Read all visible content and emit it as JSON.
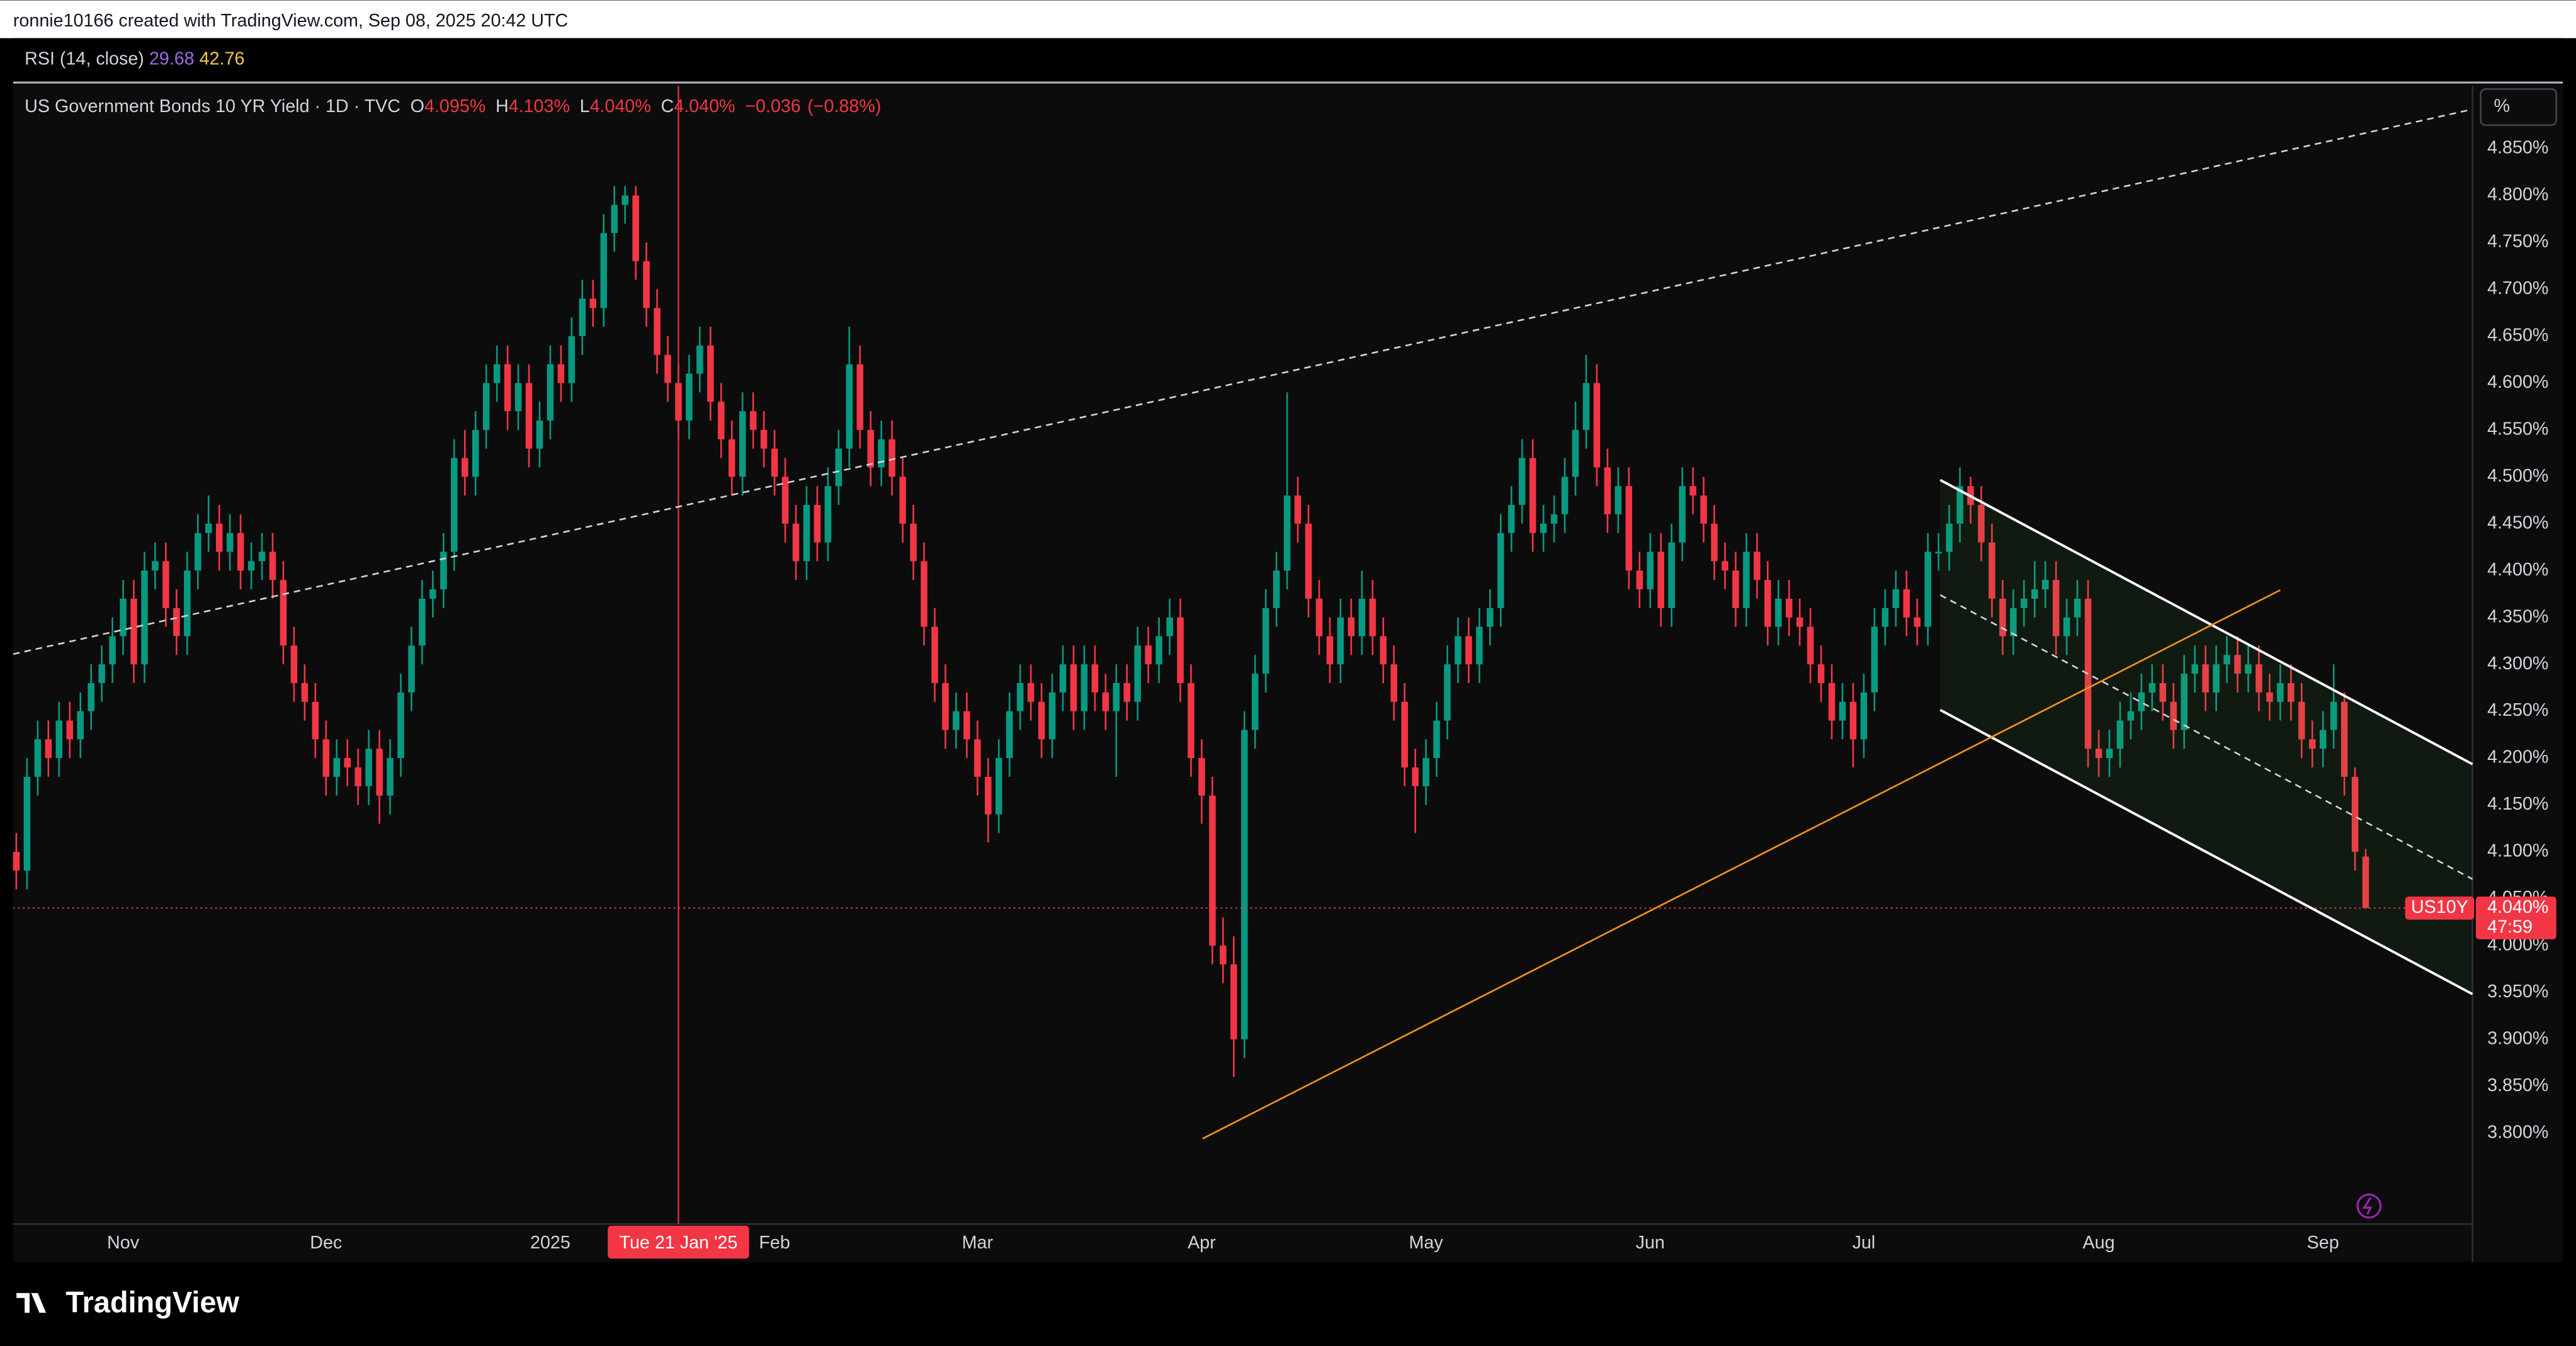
{
  "header": {
    "credit": "ronnie10166 created with TradingView.com, Sep 08, 2025 20:42 UTC"
  },
  "rsi": {
    "label": "RSI (14, close)",
    "values": [
      29.68,
      42.76
    ]
  },
  "footer": {
    "logo": "TradingView"
  },
  "chart_data": {
    "type": "candlestick",
    "title": "US Government Bonds 10 YR Yield · 1D · TVC",
    "ohlc": [
      {
        "key": "O",
        "value": 4.095,
        "label": "4.095%"
      },
      {
        "key": "H",
        "value": 4.103,
        "label": "4.103%"
      },
      {
        "key": "L",
        "value": 4.04,
        "label": "4.040%"
      },
      {
        "key": "C",
        "value": 4.04,
        "label": "4.040%"
      }
    ],
    "change": [
      {
        "value": -0.036,
        "label": "−0.036"
      },
      {
        "value": -0.88,
        "label": "(−0.88%)"
      }
    ],
    "unit": "%",
    "up_color": "#089981",
    "down_color": "#f23645",
    "grid": false,
    "xlim": [
      -0.3,
      230
    ],
    "ylim": [
      3.703,
      4.917
    ],
    "xticks": [
      {
        "value": 10,
        "label": "Nov"
      },
      {
        "value": 29,
        "label": "Dec"
      },
      {
        "value": 50,
        "label": "2025"
      },
      {
        "value": 71,
        "label": "Feb"
      },
      {
        "value": 90,
        "label": "Mar"
      },
      {
        "value": 111,
        "label": "Apr"
      },
      {
        "value": 132,
        "label": "May"
      },
      {
        "value": 153,
        "label": "Jun"
      },
      {
        "value": 173,
        "label": "Jul"
      },
      {
        "value": 195,
        "label": "Aug"
      },
      {
        "value": 216,
        "label": "Sep"
      }
    ],
    "yticks": [
      {
        "value": 3.8,
        "label": "3.800%"
      },
      {
        "value": 3.85,
        "label": "3.850%"
      },
      {
        "value": 3.9,
        "label": "3.900%"
      },
      {
        "value": 3.95,
        "label": "3.950%"
      },
      {
        "value": 4.0,
        "label": "4.000%"
      },
      {
        "value": 4.05,
        "label": "4.050%"
      },
      {
        "value": 4.1,
        "label": "4.100%"
      },
      {
        "value": 4.15,
        "label": "4.150%"
      },
      {
        "value": 4.2,
        "label": "4.200%"
      },
      {
        "value": 4.25,
        "label": "4.250%"
      },
      {
        "value": 4.3,
        "label": "4.300%"
      },
      {
        "value": 4.35,
        "label": "4.350%"
      },
      {
        "value": 4.4,
        "label": "4.400%"
      },
      {
        "value": 4.45,
        "label": "4.450%"
      },
      {
        "value": 4.5,
        "label": "4.500%"
      },
      {
        "value": 4.55,
        "label": "4.550%"
      },
      {
        "value": 4.6,
        "label": "4.600%"
      },
      {
        "value": 4.65,
        "label": "4.650%"
      },
      {
        "value": 4.7,
        "label": "4.700%"
      },
      {
        "value": 4.75,
        "label": "4.750%"
      },
      {
        "value": 4.8,
        "label": "4.800%"
      },
      {
        "value": 4.85,
        "label": "4.850%"
      }
    ],
    "crosshair": {
      "x": 62,
      "label": "Tue 21 Jan '25"
    },
    "last": {
      "value": 4.04,
      "label": "4.040%",
      "countdown": "47:59",
      "symbol": "US10Y"
    },
    "candles": [
      [
        4.1,
        4.12,
        4.06,
        4.08
      ],
      [
        4.08,
        4.2,
        4.06,
        4.18
      ],
      [
        4.18,
        4.24,
        4.16,
        4.22
      ],
      [
        4.22,
        4.24,
        4.18,
        4.2
      ],
      [
        4.2,
        4.26,
        4.18,
        4.24
      ],
      [
        4.24,
        4.26,
        4.2,
        4.22
      ],
      [
        4.22,
        4.27,
        4.2,
        4.25
      ],
      [
        4.25,
        4.3,
        4.23,
        4.28
      ],
      [
        4.28,
        4.32,
        4.26,
        4.3
      ],
      [
        4.3,
        4.35,
        4.28,
        4.33
      ],
      [
        4.33,
        4.39,
        4.31,
        4.37
      ],
      [
        4.37,
        4.39,
        4.28,
        4.3
      ],
      [
        4.3,
        4.42,
        4.28,
        4.4
      ],
      [
        4.4,
        4.43,
        4.38,
        4.41
      ],
      [
        4.41,
        4.43,
        4.34,
        4.36
      ],
      [
        4.36,
        4.38,
        4.31,
        4.33
      ],
      [
        4.33,
        4.42,
        4.31,
        4.4
      ],
      [
        4.4,
        4.46,
        4.38,
        4.44
      ],
      [
        4.44,
        4.48,
        4.42,
        4.45
      ],
      [
        4.45,
        4.47,
        4.4,
        4.42
      ],
      [
        4.42,
        4.46,
        4.4,
        4.44
      ],
      [
        4.44,
        4.46,
        4.38,
        4.4
      ],
      [
        4.4,
        4.43,
        4.38,
        4.41
      ],
      [
        4.41,
        4.44,
        4.39,
        4.42
      ],
      [
        4.42,
        4.44,
        4.37,
        4.39
      ],
      [
        4.39,
        4.41,
        4.3,
        4.32
      ],
      [
        4.32,
        4.34,
        4.26,
        4.28
      ],
      [
        4.28,
        4.3,
        4.24,
        4.26
      ],
      [
        4.26,
        4.28,
        4.2,
        4.22
      ],
      [
        4.22,
        4.24,
        4.16,
        4.18
      ],
      [
        4.18,
        4.22,
        4.16,
        4.2
      ],
      [
        4.2,
        4.22,
        4.17,
        4.19
      ],
      [
        4.19,
        4.21,
        4.15,
        4.17
      ],
      [
        4.17,
        4.23,
        4.15,
        4.21
      ],
      [
        4.21,
        4.23,
        4.13,
        4.16
      ],
      [
        4.16,
        4.22,
        4.14,
        4.2
      ],
      [
        4.2,
        4.29,
        4.18,
        4.27
      ],
      [
        4.27,
        4.34,
        4.25,
        4.32
      ],
      [
        4.32,
        4.39,
        4.3,
        4.37
      ],
      [
        4.37,
        4.4,
        4.35,
        4.38
      ],
      [
        4.38,
        4.44,
        4.36,
        4.42
      ],
      [
        4.42,
        4.54,
        4.4,
        4.52
      ],
      [
        4.52,
        4.55,
        4.48,
        4.5
      ],
      [
        4.5,
        4.57,
        4.48,
        4.55
      ],
      [
        4.55,
        4.62,
        4.53,
        4.6
      ],
      [
        4.6,
        4.64,
        4.58,
        4.62
      ],
      [
        4.62,
        4.64,
        4.55,
        4.57
      ],
      [
        4.57,
        4.62,
        4.55,
        4.6
      ],
      [
        4.6,
        4.62,
        4.51,
        4.53
      ],
      [
        4.53,
        4.58,
        4.51,
        4.56
      ],
      [
        4.56,
        4.64,
        4.54,
        4.62
      ],
      [
        4.62,
        4.64,
        4.58,
        4.6
      ],
      [
        4.6,
        4.67,
        4.58,
        4.65
      ],
      [
        4.65,
        4.71,
        4.63,
        4.69
      ],
      [
        4.69,
        4.71,
        4.66,
        4.68
      ],
      [
        4.68,
        4.78,
        4.66,
        4.76
      ],
      [
        4.76,
        4.81,
        4.74,
        4.79
      ],
      [
        4.79,
        4.81,
        4.77,
        4.8
      ],
      [
        4.8,
        4.81,
        4.71,
        4.73
      ],
      [
        4.73,
        4.75,
        4.66,
        4.68
      ],
      [
        4.68,
        4.7,
        4.61,
        4.63
      ],
      [
        4.63,
        4.65,
        4.58,
        4.6
      ],
      [
        4.6,
        4.62,
        4.54,
        4.56
      ],
      [
        4.56,
        4.63,
        4.54,
        4.61
      ],
      [
        4.61,
        4.66,
        4.59,
        4.64
      ],
      [
        4.64,
        4.66,
        4.56,
        4.58
      ],
      [
        4.58,
        4.6,
        4.52,
        4.54
      ],
      [
        4.54,
        4.56,
        4.48,
        4.5
      ],
      [
        4.5,
        4.59,
        4.48,
        4.57
      ],
      [
        4.57,
        4.59,
        4.53,
        4.55
      ],
      [
        4.55,
        4.57,
        4.51,
        4.53
      ],
      [
        4.53,
        4.55,
        4.48,
        4.5
      ],
      [
        4.5,
        4.52,
        4.43,
        4.45
      ],
      [
        4.45,
        4.47,
        4.39,
        4.41
      ],
      [
        4.41,
        4.49,
        4.39,
        4.47
      ],
      [
        4.47,
        4.49,
        4.41,
        4.43
      ],
      [
        4.43,
        4.51,
        4.41,
        4.49
      ],
      [
        4.49,
        4.55,
        4.47,
        4.53
      ],
      [
        4.53,
        4.66,
        4.51,
        4.62
      ],
      [
        4.62,
        4.64,
        4.53,
        4.55
      ],
      [
        4.55,
        4.57,
        4.49,
        4.51
      ],
      [
        4.51,
        4.56,
        4.49,
        4.54
      ],
      [
        4.54,
        4.56,
        4.48,
        4.5
      ],
      [
        4.5,
        4.52,
        4.43,
        4.45
      ],
      [
        4.45,
        4.47,
        4.39,
        4.41
      ],
      [
        4.41,
        4.43,
        4.32,
        4.34
      ],
      [
        4.34,
        4.36,
        4.26,
        4.28
      ],
      [
        4.28,
        4.3,
        4.21,
        4.23
      ],
      [
        4.23,
        4.27,
        4.21,
        4.25
      ],
      [
        4.25,
        4.27,
        4.2,
        4.22
      ],
      [
        4.22,
        4.24,
        4.16,
        4.18
      ],
      [
        4.18,
        4.2,
        4.11,
        4.14
      ],
      [
        4.14,
        4.22,
        4.12,
        4.2
      ],
      [
        4.2,
        4.27,
        4.18,
        4.25
      ],
      [
        4.25,
        4.3,
        4.23,
        4.28
      ],
      [
        4.28,
        4.3,
        4.24,
        4.26
      ],
      [
        4.26,
        4.28,
        4.2,
        4.22
      ],
      [
        4.22,
        4.29,
        4.2,
        4.27
      ],
      [
        4.27,
        4.32,
        4.25,
        4.3
      ],
      [
        4.3,
        4.32,
        4.23,
        4.25
      ],
      [
        4.25,
        4.32,
        4.23,
        4.3
      ],
      [
        4.3,
        4.32,
        4.25,
        4.27
      ],
      [
        4.27,
        4.29,
        4.23,
        4.25
      ],
      [
        4.25,
        4.3,
        4.18,
        4.28
      ],
      [
        4.28,
        4.3,
        4.24,
        4.26
      ],
      [
        4.26,
        4.34,
        4.24,
        4.32
      ],
      [
        4.32,
        4.34,
        4.28,
        4.3
      ],
      [
        4.3,
        4.35,
        4.28,
        4.33
      ],
      [
        4.33,
        4.37,
        4.31,
        4.35
      ],
      [
        4.35,
        4.37,
        4.26,
        4.28
      ],
      [
        4.28,
        4.3,
        4.18,
        4.2
      ],
      [
        4.2,
        4.22,
        4.13,
        4.16
      ],
      [
        4.16,
        4.18,
        3.98,
        4.0
      ],
      [
        4.0,
        4.03,
        3.96,
        3.98
      ],
      [
        3.98,
        4.01,
        3.86,
        3.9
      ],
      [
        3.9,
        4.25,
        3.88,
        4.23
      ],
      [
        4.23,
        4.31,
        4.21,
        4.29
      ],
      [
        4.29,
        4.38,
        4.27,
        4.36
      ],
      [
        4.36,
        4.42,
        4.34,
        4.4
      ],
      [
        4.4,
        4.59,
        4.38,
        4.48
      ],
      [
        4.48,
        4.5,
        4.43,
        4.45
      ],
      [
        4.45,
        4.47,
        4.35,
        4.37
      ],
      [
        4.37,
        4.39,
        4.31,
        4.33
      ],
      [
        4.33,
        4.35,
        4.28,
        4.3
      ],
      [
        4.3,
        4.37,
        4.28,
        4.35
      ],
      [
        4.35,
        4.37,
        4.31,
        4.33
      ],
      [
        4.33,
        4.4,
        4.31,
        4.37
      ],
      [
        4.37,
        4.39,
        4.31,
        4.33
      ],
      [
        4.33,
        4.35,
        4.28,
        4.3
      ],
      [
        4.3,
        4.32,
        4.24,
        4.26
      ],
      [
        4.26,
        4.28,
        4.17,
        4.19
      ],
      [
        4.19,
        4.21,
        4.12,
        4.17
      ],
      [
        4.17,
        4.22,
        4.15,
        4.2
      ],
      [
        4.2,
        4.26,
        4.18,
        4.24
      ],
      [
        4.24,
        4.32,
        4.22,
        4.3
      ],
      [
        4.3,
        4.35,
        4.28,
        4.33
      ],
      [
        4.33,
        4.35,
        4.28,
        4.3
      ],
      [
        4.3,
        4.36,
        4.28,
        4.34
      ],
      [
        4.34,
        4.38,
        4.32,
        4.36
      ],
      [
        4.36,
        4.46,
        4.34,
        4.44
      ],
      [
        4.44,
        4.49,
        4.42,
        4.47
      ],
      [
        4.47,
        4.54,
        4.45,
        4.52
      ],
      [
        4.52,
        4.54,
        4.42,
        4.44
      ],
      [
        4.44,
        4.47,
        4.42,
        4.45
      ],
      [
        4.45,
        4.48,
        4.43,
        4.46
      ],
      [
        4.46,
        4.52,
        4.44,
        4.5
      ],
      [
        4.5,
        4.58,
        4.48,
        4.55
      ],
      [
        4.55,
        4.63,
        4.53,
        4.6
      ],
      [
        4.6,
        4.62,
        4.49,
        4.51
      ],
      [
        4.51,
        4.53,
        4.44,
        4.46
      ],
      [
        4.46,
        4.51,
        4.44,
        4.49
      ],
      [
        4.49,
        4.51,
        4.38,
        4.4
      ],
      [
        4.4,
        4.42,
        4.36,
        4.38
      ],
      [
        4.38,
        4.44,
        4.36,
        4.42
      ],
      [
        4.42,
        4.44,
        4.34,
        4.36
      ],
      [
        4.36,
        4.45,
        4.34,
        4.43
      ],
      [
        4.43,
        4.51,
        4.41,
        4.49
      ],
      [
        4.49,
        4.51,
        4.46,
        4.48
      ],
      [
        4.48,
        4.5,
        4.43,
        4.45
      ],
      [
        4.45,
        4.47,
        4.39,
        4.41
      ],
      [
        4.41,
        4.43,
        4.38,
        4.4
      ],
      [
        4.4,
        4.42,
        4.34,
        4.36
      ],
      [
        4.36,
        4.44,
        4.34,
        4.42
      ],
      [
        4.42,
        4.44,
        4.37,
        4.39
      ],
      [
        4.39,
        4.41,
        4.32,
        4.34
      ],
      [
        4.34,
        4.39,
        4.32,
        4.37
      ],
      [
        4.37,
        4.39,
        4.33,
        4.35
      ],
      [
        4.35,
        4.37,
        4.32,
        4.34
      ],
      [
        4.34,
        4.36,
        4.28,
        4.3
      ],
      [
        4.3,
        4.32,
        4.26,
        4.28
      ],
      [
        4.28,
        4.3,
        4.22,
        4.24
      ],
      [
        4.24,
        4.28,
        4.22,
        4.26
      ],
      [
        4.26,
        4.28,
        4.19,
        4.22
      ],
      [
        4.22,
        4.29,
        4.2,
        4.27
      ],
      [
        4.27,
        4.36,
        4.25,
        4.34
      ],
      [
        4.34,
        4.38,
        4.32,
        4.36
      ],
      [
        4.36,
        4.4,
        4.34,
        4.38
      ],
      [
        4.38,
        4.4,
        4.33,
        4.35
      ],
      [
        4.35,
        4.37,
        4.32,
        4.34
      ],
      [
        4.34,
        4.44,
        4.32,
        4.42
      ],
      [
        4.42,
        4.44,
        4.4,
        4.42
      ],
      [
        4.42,
        4.47,
        4.4,
        4.45
      ],
      [
        4.45,
        4.51,
        4.43,
        4.49
      ],
      [
        4.49,
        4.5,
        4.45,
        4.47
      ],
      [
        4.47,
        4.49,
        4.41,
        4.43
      ],
      [
        4.43,
        4.45,
        4.35,
        4.37
      ],
      [
        4.37,
        4.39,
        4.31,
        4.33
      ],
      [
        4.33,
        4.38,
        4.31,
        4.36
      ],
      [
        4.36,
        4.39,
        4.34,
        4.37
      ],
      [
        4.37,
        4.41,
        4.35,
        4.38
      ],
      [
        4.38,
        4.41,
        4.36,
        4.39
      ],
      [
        4.39,
        4.41,
        4.31,
        4.33
      ],
      [
        4.33,
        4.37,
        4.31,
        4.35
      ],
      [
        4.35,
        4.39,
        4.33,
        4.37
      ],
      [
        4.37,
        4.39,
        4.19,
        4.21
      ],
      [
        4.21,
        4.23,
        4.18,
        4.2
      ],
      [
        4.2,
        4.23,
        4.18,
        4.21
      ],
      [
        4.21,
        4.26,
        4.19,
        4.24
      ],
      [
        4.24,
        4.27,
        4.22,
        4.25
      ],
      [
        4.25,
        4.29,
        4.23,
        4.27
      ],
      [
        4.27,
        4.3,
        4.25,
        4.28
      ],
      [
        4.28,
        4.3,
        4.24,
        4.26
      ],
      [
        4.26,
        4.28,
        4.21,
        4.23
      ],
      [
        4.23,
        4.31,
        4.21,
        4.29
      ],
      [
        4.29,
        4.32,
        4.27,
        4.3
      ],
      [
        4.3,
        4.32,
        4.25,
        4.27
      ],
      [
        4.27,
        4.32,
        4.25,
        4.3
      ],
      [
        4.3,
        4.33,
        4.28,
        4.31
      ],
      [
        4.31,
        4.33,
        4.27,
        4.29
      ],
      [
        4.29,
        4.32,
        4.27,
        4.3
      ],
      [
        4.3,
        4.32,
        4.25,
        4.27
      ],
      [
        4.27,
        4.29,
        4.24,
        4.26
      ],
      [
        4.26,
        4.3,
        4.24,
        4.28
      ],
      [
        4.28,
        4.3,
        4.24,
        4.26
      ],
      [
        4.26,
        4.28,
        4.2,
        4.22
      ],
      [
        4.22,
        4.24,
        4.19,
        4.21
      ],
      [
        4.21,
        4.25,
        4.19,
        4.23
      ],
      [
        4.23,
        4.3,
        4.21,
        4.26
      ],
      [
        4.26,
        4.27,
        4.16,
        4.18
      ],
      [
        4.18,
        4.19,
        4.08,
        4.1
      ],
      [
        4.095,
        4.103,
        4.04,
        4.04
      ]
    ]
  }
}
